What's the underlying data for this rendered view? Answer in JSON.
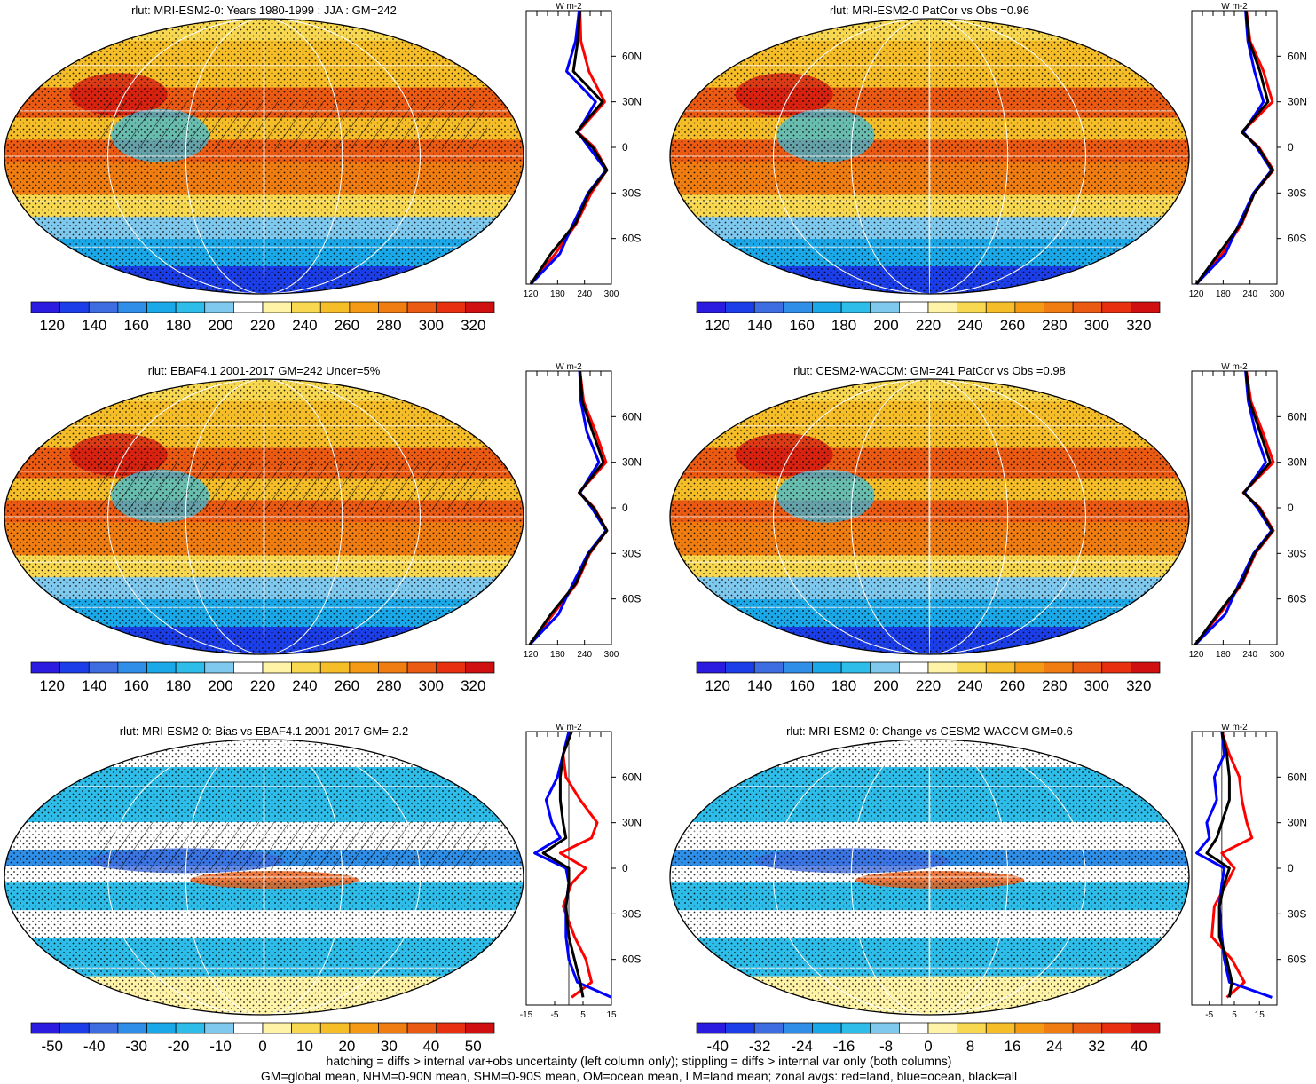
{
  "figure": {
    "footnote_1": "hatching = diffs > internal var+obs uncertainty (left column only); stippling = diffs > internal var only (both columns)",
    "footnote_2": "GM=global mean, NHM=0-90N mean, SHM=0-90S mean, OM=ocean mean, LM=land mean; zonal avgs: red=land, blue=ocean, black=all"
  },
  "chart_data": [
    {
      "type": "heatmap",
      "title": "rlut: MRI-ESM2-0: Years 1980-1999 : JJA : GM=242",
      "colorbar_ticks": [
        "120",
        "140",
        "160",
        "180",
        "200",
        "220",
        "240",
        "260",
        "280",
        "300",
        "320"
      ],
      "colorbar_range": [
        110,
        330
      ],
      "profile": {
        "type": "line",
        "units": "W m-2",
        "xlim": [
          110,
          300
        ],
        "x_ticks": [
          "120",
          "180",
          "240",
          "300"
        ],
        "y_ticks": [
          "60N",
          "30N",
          "0",
          "30S",
          "60S"
        ],
        "lat": [
          90,
          70,
          50,
          30,
          10,
          0,
          -15,
          -30,
          -50,
          -70,
          -90
        ],
        "series": [
          {
            "name": "land",
            "color": "#ff0000",
            "values": [
              230,
              232,
              250,
              285,
              225,
              262,
              290,
              255,
              222,
              175,
              120
            ]
          },
          {
            "name": "ocean",
            "color": "#0000ff",
            "values": [
              228,
              220,
              200,
              265,
              225,
              250,
              288,
              248,
              215,
              185,
              120
            ]
          },
          {
            "name": "all",
            "color": "#000000",
            "values": [
              230,
              225,
              215,
              280,
              222,
              258,
              290,
              250,
              220,
              165,
              120
            ]
          }
        ]
      }
    },
    {
      "type": "heatmap",
      "title": "rlut: MRI-ESM2-0 PatCor vs Obs =0.96",
      "colorbar_ticks": [
        "120",
        "140",
        "160",
        "180",
        "200",
        "220",
        "240",
        "260",
        "280",
        "300",
        "320"
      ],
      "colorbar_range": [
        110,
        330
      ],
      "profile": {
        "type": "line",
        "units": "W m-2",
        "xlim": [
          110,
          300
        ],
        "x_ticks": [
          "120",
          "180",
          "240",
          "300"
        ],
        "y_ticks": [
          "60N",
          "30N",
          "0",
          "30S",
          "60S"
        ],
        "lat": [
          90,
          70,
          50,
          30,
          10,
          0,
          -15,
          -30,
          -50,
          -70,
          -90
        ],
        "series": [
          {
            "name": "land",
            "color": "#ff0000",
            "values": [
              232,
              240,
              270,
              290,
              222,
              260,
              292,
              250,
              222,
              178,
              120
            ]
          },
          {
            "name": "ocean",
            "color": "#0000ff",
            "values": [
              230,
              235,
              250,
              270,
              225,
              255,
              288,
              248,
              216,
              185,
              120
            ]
          },
          {
            "name": "all",
            "color": "#000000",
            "values": [
              231,
              238,
              262,
              280,
              222,
              258,
              290,
              250,
              220,
              170,
              120
            ]
          }
        ]
      }
    },
    {
      "type": "heatmap",
      "title": "rlut: EBAF4.1 2001-2017 GM=242 Uncer=5%",
      "colorbar_ticks": [
        "120",
        "140",
        "160",
        "180",
        "200",
        "220",
        "240",
        "260",
        "280",
        "300",
        "320"
      ],
      "colorbar_range": [
        110,
        330
      ],
      "profile": {
        "type": "line",
        "units": "W m-2",
        "xlim": [
          110,
          300
        ],
        "x_ticks": [
          "120",
          "180",
          "240",
          "300"
        ],
        "y_ticks": [
          "60N",
          "30N",
          "0",
          "30S",
          "60S"
        ],
        "lat": [
          90,
          70,
          50,
          30,
          10,
          0,
          -15,
          -30,
          -50,
          -70,
          -90
        ],
        "series": [
          {
            "name": "land",
            "color": "#ff0000",
            "values": [
              230,
              238,
              265,
              288,
              228,
              262,
              290,
              252,
              222,
              170,
              118
            ]
          },
          {
            "name": "ocean",
            "color": "#0000ff",
            "values": [
              229,
              232,
              245,
              272,
              230,
              256,
              288,
              248,
              214,
              182,
              118
            ]
          },
          {
            "name": "all",
            "color": "#000000",
            "values": [
              230,
              235,
              258,
              282,
              228,
              260,
              290,
              250,
              220,
              165,
              118
            ]
          }
        ]
      }
    },
    {
      "type": "heatmap",
      "title": "rlut: CESM2-WACCM: GM=241 PatCor vs Obs =0.98",
      "colorbar_ticks": [
        "120",
        "140",
        "160",
        "180",
        "200",
        "220",
        "240",
        "260",
        "280",
        "300",
        "320"
      ],
      "colorbar_range": [
        110,
        330
      ],
      "profile": {
        "type": "line",
        "units": "W m-2",
        "xlim": [
          110,
          300
        ],
        "x_ticks": [
          "120",
          "180",
          "240",
          "300"
        ],
        "y_ticks": [
          "60N",
          "30N",
          "0",
          "30S",
          "60S"
        ],
        "lat": [
          90,
          70,
          50,
          30,
          10,
          0,
          -15,
          -30,
          -50,
          -70,
          -90
        ],
        "series": [
          {
            "name": "land",
            "color": "#ff0000",
            "values": [
              232,
              242,
              268,
              292,
              225,
              262,
              292,
              252,
              222,
              172,
              118
            ]
          },
          {
            "name": "ocean",
            "color": "#0000ff",
            "values": [
              230,
              236,
              252,
              275,
              228,
              256,
              288,
              248,
              215,
              185,
              118
            ]
          },
          {
            "name": "all",
            "color": "#000000",
            "values": [
              231,
              239,
              262,
              285,
              226,
              260,
              290,
              250,
              220,
              168,
              118
            ]
          }
        ]
      }
    },
    {
      "type": "heatmap",
      "title": "rlut: MRI-ESM2-0: Bias vs EBAF4.1 2001-2017 GM=-2.2",
      "colorbar_ticks": [
        "-50",
        "-40",
        "-30",
        "-20",
        "-10",
        "0",
        "10",
        "20",
        "30",
        "40",
        "50"
      ],
      "colorbar_range": [
        -55,
        55
      ],
      "profile": {
        "type": "line",
        "units": "W m-2",
        "xlim": [
          -15,
          15
        ],
        "x_ticks": [
          "-15",
          "-5",
          "5",
          "15"
        ],
        "y_ticks": [
          "60N",
          "30N",
          "0",
          "30S",
          "60S"
        ],
        "lat": [
          90,
          75,
          60,
          45,
          30,
          20,
          10,
          0,
          -10,
          -25,
          -45,
          -60,
          -75,
          -85
        ],
        "series": [
          {
            "name": "land",
            "color": "#ff0000",
            "values": [
              1,
              -2,
              -1,
              4,
              10,
              8,
              -3,
              6,
              1,
              -2,
              2,
              6,
              8,
              1
            ]
          },
          {
            "name": "ocean",
            "color": "#0000ff",
            "values": [
              0,
              -2,
              -4,
              -8,
              -6,
              -3,
              -12,
              -1,
              0,
              -1,
              -1,
              0,
              3,
              15
            ]
          },
          {
            "name": "all",
            "color": "#000000",
            "values": [
              1,
              -2,
              -3,
              -3,
              -2,
              -1,
              -9,
              0,
              0,
              -1,
              0,
              2,
              4,
              5
            ]
          }
        ]
      }
    },
    {
      "type": "heatmap",
      "title": "rlut: MRI-ESM2-0: Change vs CESM2-WACCM GM=0.6",
      "colorbar_ticks": [
        "-40",
        "-32",
        "-24",
        "-16",
        "-8",
        "0",
        "8",
        "16",
        "24",
        "32",
        "40"
      ],
      "colorbar_range": [
        -44,
        44
      ],
      "profile": {
        "type": "line",
        "units": "W m-2",
        "xlim": [
          -12,
          22
        ],
        "x_ticks": [
          "-5",
          "5",
          "15"
        ],
        "y_ticks": [
          "60N",
          "30N",
          "0",
          "30S",
          "60S"
        ],
        "lat": [
          90,
          75,
          60,
          45,
          30,
          20,
          10,
          0,
          -10,
          -25,
          -45,
          -60,
          -75,
          -85
        ],
        "series": [
          {
            "name": "land",
            "color": "#ff0000",
            "values": [
              0,
              3,
              7,
              8,
              10,
              12,
              0,
              5,
              2,
              -3,
              -4,
              4,
              9,
              2
            ]
          },
          {
            "name": "ocean",
            "color": "#0000ff",
            "values": [
              0,
              1,
              -3,
              -2,
              -6,
              -5,
              -10,
              1,
              0,
              -1,
              0,
              1,
              3,
              20
            ]
          },
          {
            "name": "all",
            "color": "#000000",
            "values": [
              0,
              2,
              3,
              3,
              0,
              -2,
              -6,
              3,
              1,
              -1,
              -1,
              2,
              4,
              3
            ]
          }
        ]
      }
    }
  ]
}
